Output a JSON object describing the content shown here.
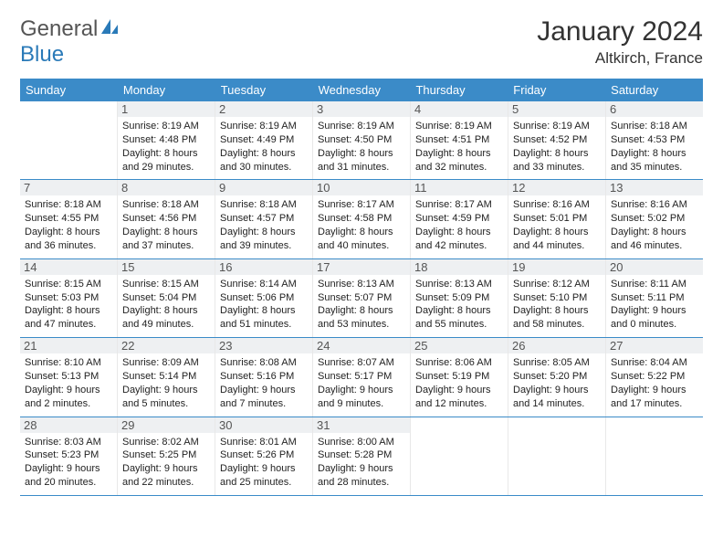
{
  "brand": {
    "part1": "General",
    "part2": "Blue"
  },
  "title": "January 2024",
  "location": "Altkirch, France",
  "colors": {
    "header_bg": "#3b8bc8",
    "header_text": "#ffffff",
    "daynum_bg": "#eef0f2",
    "border": "#3b8bc8",
    "text": "#333333"
  },
  "typography": {
    "title_fontsize": 30,
    "location_fontsize": 17,
    "dow_fontsize": 13,
    "daynum_fontsize": 13,
    "body_fontsize": 11
  },
  "dow": [
    "Sunday",
    "Monday",
    "Tuesday",
    "Wednesday",
    "Thursday",
    "Friday",
    "Saturday"
  ],
  "weeks": [
    [
      null,
      {
        "n": "1",
        "sr": "Sunrise: 8:19 AM",
        "ss": "Sunset: 4:48 PM",
        "d1": "Daylight: 8 hours",
        "d2": "and 29 minutes."
      },
      {
        "n": "2",
        "sr": "Sunrise: 8:19 AM",
        "ss": "Sunset: 4:49 PM",
        "d1": "Daylight: 8 hours",
        "d2": "and 30 minutes."
      },
      {
        "n": "3",
        "sr": "Sunrise: 8:19 AM",
        "ss": "Sunset: 4:50 PM",
        "d1": "Daylight: 8 hours",
        "d2": "and 31 minutes."
      },
      {
        "n": "4",
        "sr": "Sunrise: 8:19 AM",
        "ss": "Sunset: 4:51 PM",
        "d1": "Daylight: 8 hours",
        "d2": "and 32 minutes."
      },
      {
        "n": "5",
        "sr": "Sunrise: 8:19 AM",
        "ss": "Sunset: 4:52 PM",
        "d1": "Daylight: 8 hours",
        "d2": "and 33 minutes."
      },
      {
        "n": "6",
        "sr": "Sunrise: 8:18 AM",
        "ss": "Sunset: 4:53 PM",
        "d1": "Daylight: 8 hours",
        "d2": "and 35 minutes."
      }
    ],
    [
      {
        "n": "7",
        "sr": "Sunrise: 8:18 AM",
        "ss": "Sunset: 4:55 PM",
        "d1": "Daylight: 8 hours",
        "d2": "and 36 minutes."
      },
      {
        "n": "8",
        "sr": "Sunrise: 8:18 AM",
        "ss": "Sunset: 4:56 PM",
        "d1": "Daylight: 8 hours",
        "d2": "and 37 minutes."
      },
      {
        "n": "9",
        "sr": "Sunrise: 8:18 AM",
        "ss": "Sunset: 4:57 PM",
        "d1": "Daylight: 8 hours",
        "d2": "and 39 minutes."
      },
      {
        "n": "10",
        "sr": "Sunrise: 8:17 AM",
        "ss": "Sunset: 4:58 PM",
        "d1": "Daylight: 8 hours",
        "d2": "and 40 minutes."
      },
      {
        "n": "11",
        "sr": "Sunrise: 8:17 AM",
        "ss": "Sunset: 4:59 PM",
        "d1": "Daylight: 8 hours",
        "d2": "and 42 minutes."
      },
      {
        "n": "12",
        "sr": "Sunrise: 8:16 AM",
        "ss": "Sunset: 5:01 PM",
        "d1": "Daylight: 8 hours",
        "d2": "and 44 minutes."
      },
      {
        "n": "13",
        "sr": "Sunrise: 8:16 AM",
        "ss": "Sunset: 5:02 PM",
        "d1": "Daylight: 8 hours",
        "d2": "and 46 minutes."
      }
    ],
    [
      {
        "n": "14",
        "sr": "Sunrise: 8:15 AM",
        "ss": "Sunset: 5:03 PM",
        "d1": "Daylight: 8 hours",
        "d2": "and 47 minutes."
      },
      {
        "n": "15",
        "sr": "Sunrise: 8:15 AM",
        "ss": "Sunset: 5:04 PM",
        "d1": "Daylight: 8 hours",
        "d2": "and 49 minutes."
      },
      {
        "n": "16",
        "sr": "Sunrise: 8:14 AM",
        "ss": "Sunset: 5:06 PM",
        "d1": "Daylight: 8 hours",
        "d2": "and 51 minutes."
      },
      {
        "n": "17",
        "sr": "Sunrise: 8:13 AM",
        "ss": "Sunset: 5:07 PM",
        "d1": "Daylight: 8 hours",
        "d2": "and 53 minutes."
      },
      {
        "n": "18",
        "sr": "Sunrise: 8:13 AM",
        "ss": "Sunset: 5:09 PM",
        "d1": "Daylight: 8 hours",
        "d2": "and 55 minutes."
      },
      {
        "n": "19",
        "sr": "Sunrise: 8:12 AM",
        "ss": "Sunset: 5:10 PM",
        "d1": "Daylight: 8 hours",
        "d2": "and 58 minutes."
      },
      {
        "n": "20",
        "sr": "Sunrise: 8:11 AM",
        "ss": "Sunset: 5:11 PM",
        "d1": "Daylight: 9 hours",
        "d2": "and 0 minutes."
      }
    ],
    [
      {
        "n": "21",
        "sr": "Sunrise: 8:10 AM",
        "ss": "Sunset: 5:13 PM",
        "d1": "Daylight: 9 hours",
        "d2": "and 2 minutes."
      },
      {
        "n": "22",
        "sr": "Sunrise: 8:09 AM",
        "ss": "Sunset: 5:14 PM",
        "d1": "Daylight: 9 hours",
        "d2": "and 5 minutes."
      },
      {
        "n": "23",
        "sr": "Sunrise: 8:08 AM",
        "ss": "Sunset: 5:16 PM",
        "d1": "Daylight: 9 hours",
        "d2": "and 7 minutes."
      },
      {
        "n": "24",
        "sr": "Sunrise: 8:07 AM",
        "ss": "Sunset: 5:17 PM",
        "d1": "Daylight: 9 hours",
        "d2": "and 9 minutes."
      },
      {
        "n": "25",
        "sr": "Sunrise: 8:06 AM",
        "ss": "Sunset: 5:19 PM",
        "d1": "Daylight: 9 hours",
        "d2": "and 12 minutes."
      },
      {
        "n": "26",
        "sr": "Sunrise: 8:05 AM",
        "ss": "Sunset: 5:20 PM",
        "d1": "Daylight: 9 hours",
        "d2": "and 14 minutes."
      },
      {
        "n": "27",
        "sr": "Sunrise: 8:04 AM",
        "ss": "Sunset: 5:22 PM",
        "d1": "Daylight: 9 hours",
        "d2": "and 17 minutes."
      }
    ],
    [
      {
        "n": "28",
        "sr": "Sunrise: 8:03 AM",
        "ss": "Sunset: 5:23 PM",
        "d1": "Daylight: 9 hours",
        "d2": "and 20 minutes."
      },
      {
        "n": "29",
        "sr": "Sunrise: 8:02 AM",
        "ss": "Sunset: 5:25 PM",
        "d1": "Daylight: 9 hours",
        "d2": "and 22 minutes."
      },
      {
        "n": "30",
        "sr": "Sunrise: 8:01 AM",
        "ss": "Sunset: 5:26 PM",
        "d1": "Daylight: 9 hours",
        "d2": "and 25 minutes."
      },
      {
        "n": "31",
        "sr": "Sunrise: 8:00 AM",
        "ss": "Sunset: 5:28 PM",
        "d1": "Daylight: 9 hours",
        "d2": "and 28 minutes."
      },
      null,
      null,
      null
    ]
  ]
}
